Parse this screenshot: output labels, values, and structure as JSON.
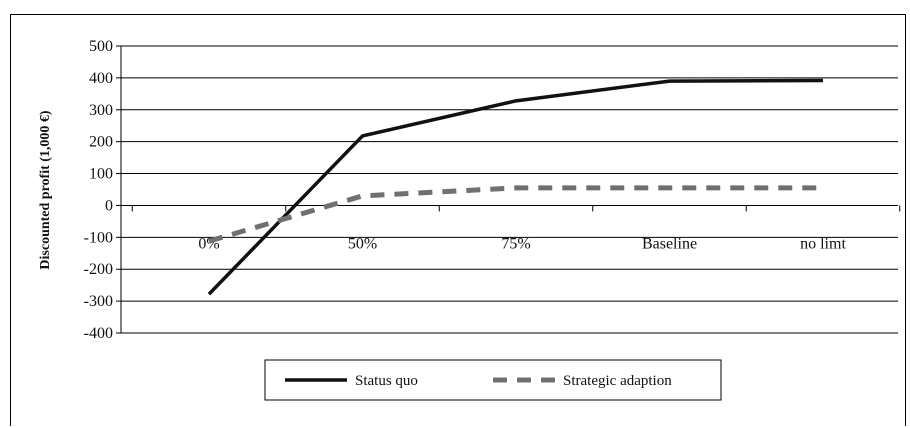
{
  "chart_data": {
    "type": "line",
    "categories": [
      "0%",
      "50%",
      "75%",
      "Baseline",
      "no limt"
    ],
    "series": [
      {
        "name": "Status quo",
        "values": [
          -278,
          218,
          328,
          390,
          392
        ],
        "color": "#111111",
        "style": "solid"
      },
      {
        "name": "Strategic adaption",
        "values": [
          -112,
          30,
          55,
          55,
          55
        ],
        "color": "#707070",
        "style": "dashed"
      }
    ],
    "title": "",
    "xlabel": "",
    "ylabel": "Discounted profit (1,000 €)",
    "ylim": [
      -400,
      500
    ],
    "yticks": [
      500,
      400,
      300,
      200,
      100,
      0,
      -100,
      -200,
      -300,
      -400
    ],
    "grid": true,
    "legend_position": "bottom"
  }
}
